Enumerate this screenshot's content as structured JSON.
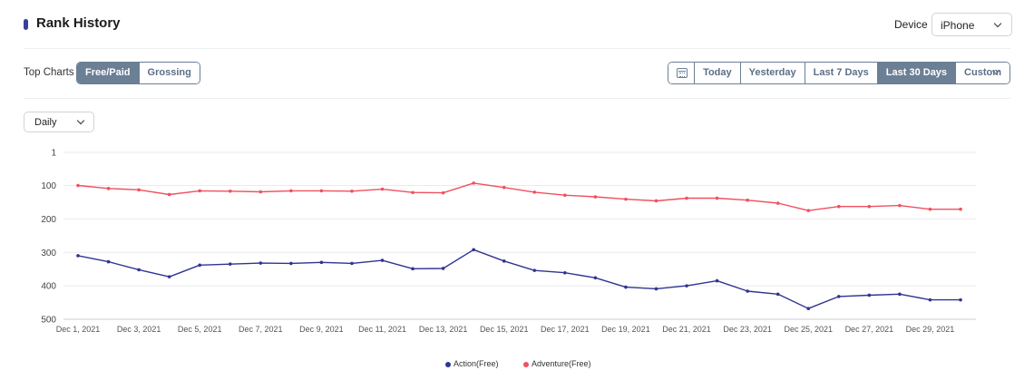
{
  "header": {
    "title": "Rank History",
    "device_label": "Device",
    "device_value": "iPhone"
  },
  "top_charts": {
    "label": "Top Charts",
    "options": [
      "Free/Paid",
      "Grossing"
    ],
    "active": "Free/Paid"
  },
  "date_range": {
    "calendar_icon": "calendar-icon",
    "options": [
      "Today",
      "Yesterday",
      "Last 7 Days",
      "Last 30 Days"
    ],
    "active": "Last 30 Days",
    "custom_label": "Custom"
  },
  "granularity": {
    "value": "Daily"
  },
  "colors": {
    "accent": "#3b3f9a",
    "toggle_active": "#6b7f95",
    "action_series": "#2f3590",
    "adventure_series": "#f0505f",
    "grid": "#e8eaed"
  },
  "chart_data": {
    "type": "line",
    "x": [
      "Dec 1, 2021",
      "Dec 2, 2021",
      "Dec 3, 2021",
      "Dec 4, 2021",
      "Dec 5, 2021",
      "Dec 6, 2021",
      "Dec 7, 2021",
      "Dec 8, 2021",
      "Dec 9, 2021",
      "Dec 10, 2021",
      "Dec 11, 2021",
      "Dec 12, 2021",
      "Dec 13, 2021",
      "Dec 14, 2021",
      "Dec 15, 2021",
      "Dec 16, 2021",
      "Dec 17, 2021",
      "Dec 18, 2021",
      "Dec 19, 2021",
      "Dec 20, 2021",
      "Dec 21, 2021",
      "Dec 22, 2021",
      "Dec 23, 2021",
      "Dec 24, 2021",
      "Dec 25, 2021",
      "Dec 26, 2021",
      "Dec 27, 2021",
      "Dec 28, 2021",
      "Dec 29, 2021",
      "Dec 30, 2021"
    ],
    "x_tick_labels": [
      "Dec 1, 2021",
      "Dec 3, 2021",
      "Dec 5, 2021",
      "Dec 7, 2021",
      "Dec 9, 2021",
      "Dec 11, 2021",
      "Dec 13, 2021",
      "Dec 15, 2021",
      "Dec 17, 2021",
      "Dec 19, 2021",
      "Dec 21, 2021",
      "Dec 23, 2021",
      "Dec 25, 2021",
      "Dec 27, 2021",
      "Dec 29, 2021"
    ],
    "y_ticks": [
      1,
      100,
      200,
      300,
      400,
      500
    ],
    "y_range": [
      1,
      500
    ],
    "y_reversed": true,
    "grid": true,
    "legend_position": "bottom-center",
    "series": [
      {
        "name": "Action(Free)",
        "values": [
          310,
          328,
          352,
          373,
          338,
          335,
          332,
          333,
          330,
          333,
          324,
          349,
          348,
          292,
          326,
          354,
          361,
          376,
          404,
          409,
          400,
          385,
          416,
          425,
          468,
          432,
          428,
          425,
          442,
          442
        ]
      },
      {
        "name": "Adventure(Free)",
        "values": [
          100,
          109,
          113,
          127,
          116,
          117,
          119,
          116,
          116,
          117,
          111,
          121,
          122,
          93,
          106,
          120,
          129,
          134,
          141,
          146,
          138,
          138,
          144,
          153,
          175,
          163,
          163,
          160,
          171,
          171
        ]
      }
    ]
  }
}
